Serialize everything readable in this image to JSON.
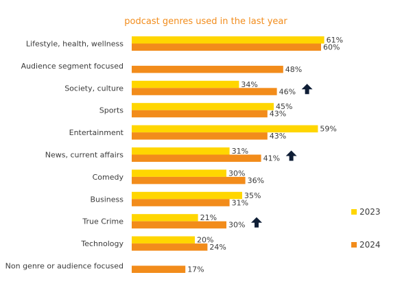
{
  "chart_data": {
    "type": "bar",
    "orientation": "horizontal",
    "title": "podcast genres used in the last year",
    "categories": [
      "Lifestyle, health, wellness",
      "Audience segment focused",
      "Society, culture",
      "Sports",
      "Entertainment",
      "News, current affairs",
      "Comedy",
      "Business",
      "True Crime",
      "Technology",
      "Non genre or audience focused"
    ],
    "series": [
      {
        "name": "2023",
        "color": "#FFD600",
        "values": [
          61,
          null,
          34,
          45,
          59,
          31,
          30,
          35,
          21,
          20,
          null
        ],
        "labels": [
          "61%",
          "",
          "34%",
          "45%",
          "59%",
          "31%",
          "30%",
          "35%",
          "21%",
          "20%",
          ""
        ]
      },
      {
        "name": "2024",
        "color": "#F28C1B",
        "values": [
          60,
          48,
          46,
          43,
          43,
          41,
          36,
          31,
          30,
          24,
          17
        ],
        "labels": [
          "60%",
          "48%",
          "46%",
          "43%",
          "43%",
          "41%",
          "36%",
          "31%",
          "30%",
          "24%",
          "17%"
        ]
      }
    ],
    "xlim": [
      0,
      62
    ],
    "grid": false,
    "legend": "right",
    "annotations": [
      {
        "category": "Society, culture",
        "series": "2024",
        "icon": "up-arrow-icon"
      },
      {
        "category": "News, current affairs",
        "series": "2024",
        "icon": "up-arrow-icon"
      },
      {
        "category": "True Crime",
        "series": "2024",
        "icon": "up-arrow-icon"
      }
    ],
    "title_color": "#F28C1B",
    "arrow_color": "#0F1E36"
  }
}
